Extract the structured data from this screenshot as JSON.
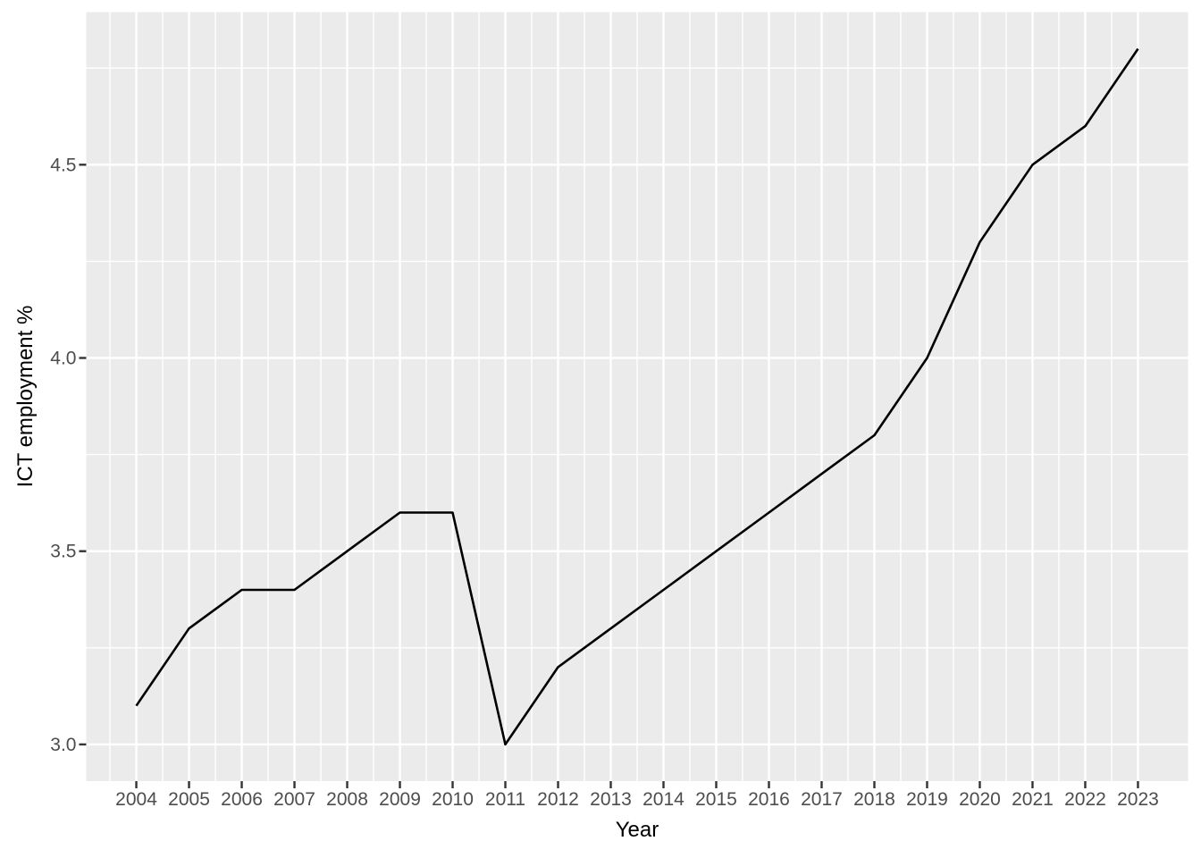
{
  "chart_data": {
    "type": "line",
    "title": "",
    "xlabel": "Year",
    "ylabel": "ICT employment %",
    "x": [
      2004,
      2005,
      2006,
      2007,
      2008,
      2009,
      2010,
      2011,
      2012,
      2013,
      2014,
      2015,
      2016,
      2017,
      2018,
      2019,
      2020,
      2021,
      2022,
      2023
    ],
    "values": [
      3.1,
      3.3,
      3.4,
      3.4,
      3.5,
      3.6,
      3.6,
      3.0,
      3.2,
      3.3,
      3.4,
      3.5,
      3.6,
      3.7,
      3.8,
      4.0,
      4.3,
      4.5,
      4.6,
      4.8
    ],
    "x_tick_labels": [
      "2004",
      "2005",
      "2006",
      "2007",
      "2008",
      "2009",
      "2010",
      "2011",
      "2012",
      "2013",
      "2014",
      "2015",
      "2016",
      "2017",
      "2018",
      "2019",
      "2020",
      "2021",
      "2022",
      "2023"
    ],
    "y_ticks": [
      3.0,
      3.5,
      4.0,
      4.5
    ],
    "y_tick_labels": [
      "3.0",
      "3.5",
      "4.0",
      "4.5"
    ],
    "x_minor_breaks": [
      2003.5,
      2004.5,
      2005.5,
      2006.5,
      2007.5,
      2008.5,
      2009.5,
      2010.5,
      2011.5,
      2012.5,
      2013.5,
      2014.5,
      2015.5,
      2016.5,
      2017.5,
      2018.5,
      2019.5,
      2020.5,
      2021.5,
      2022.5
    ],
    "y_minor_breaks": [
      3.25,
      3.75,
      4.25,
      4.75
    ],
    "xlim": [
      2003.05,
      2023.95
    ],
    "ylim": [
      2.905,
      4.895
    ],
    "grid": "major-and-minor",
    "legend": "none",
    "colors": {
      "background": "#ffffff",
      "panel": "#ebebeb",
      "grid": "#ffffff",
      "line": "#000000",
      "tick_mark": "#333333",
      "tick_label": "#4d4d4d",
      "axis_title": "#000000"
    }
  }
}
